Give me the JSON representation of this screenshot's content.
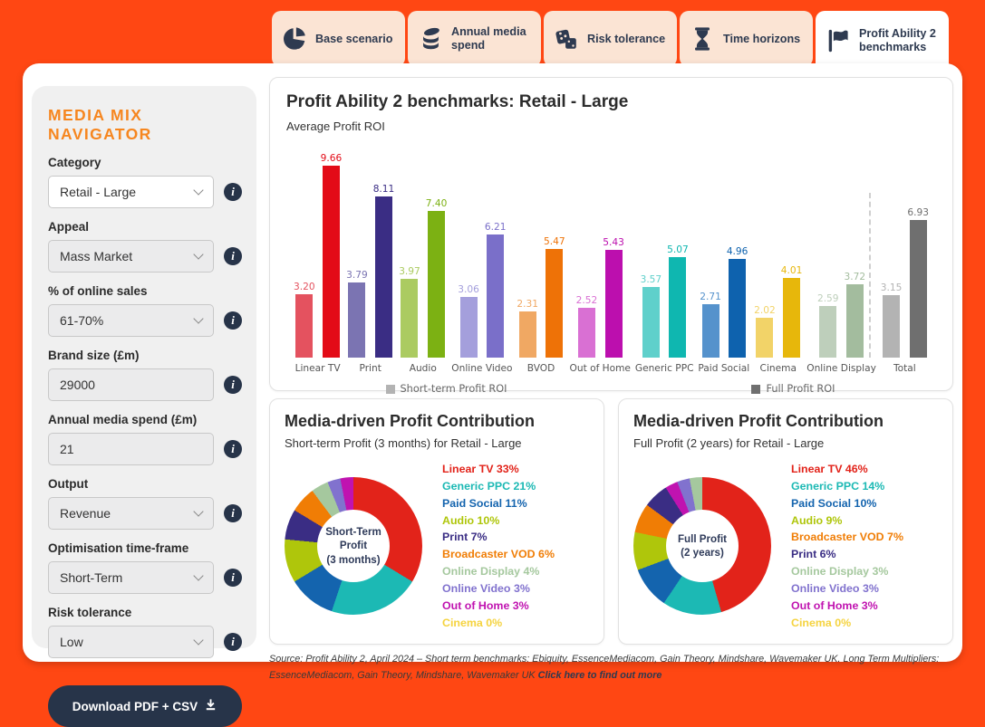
{
  "colors": {
    "frame": "#FF4713",
    "tab_bg": "#FBE4D4",
    "tab_fg": "#2E3A50",
    "accent_orange": "#F6861F",
    "navy": "#273449",
    "sidebar_bg": "#F0F0F0"
  },
  "tabs": [
    {
      "label": "Base scenario",
      "icon": "pie-chart-icon",
      "active": false
    },
    {
      "label": "Annual media spend",
      "icon": "coins-icon",
      "active": false
    },
    {
      "label": "Risk tolerance",
      "icon": "dice-icon",
      "active": false
    },
    {
      "label": "Time horizons",
      "icon": "hourglass-icon",
      "active": false
    },
    {
      "label": "Profit Ability 2 benchmarks",
      "icon": "flag-icon",
      "active": true
    }
  ],
  "sidebar": {
    "title": "MEDIA MIX NAVIGATOR",
    "fields": [
      {
        "name": "category",
        "label": "Category",
        "type": "select",
        "value": "Retail - Large",
        "highlighted": true
      },
      {
        "name": "appeal",
        "label": "Appeal",
        "type": "select",
        "value": "Mass Market",
        "highlighted": false
      },
      {
        "name": "online-sales-pct",
        "label": "% of online sales",
        "type": "select",
        "value": "61-70%",
        "highlighted": false
      },
      {
        "name": "brand-size",
        "label": "Brand size (£m)",
        "type": "input",
        "value": "29000",
        "highlighted": false
      },
      {
        "name": "annual-media-spend",
        "label": "Annual media spend (£m)",
        "type": "input",
        "value": "21",
        "highlighted": false
      },
      {
        "name": "output",
        "label": "Output",
        "type": "select",
        "value": "Revenue",
        "highlighted": false
      },
      {
        "name": "optimisation-time-frame",
        "label": "Optimisation time-frame",
        "type": "select",
        "value": "Short-Term",
        "highlighted": false
      },
      {
        "name": "risk-tolerance",
        "label": "Risk tolerance",
        "type": "select",
        "value": "Low",
        "highlighted": false
      }
    ],
    "download_label": "Download PDF + CSV"
  },
  "chart_data": [
    {
      "type": "bar",
      "title": "Profit Ability 2 benchmarks: Retail - Large",
      "subtitle": "Average Profit ROI",
      "categories": [
        "Linear TV",
        "Print",
        "Audio",
        "Online Video",
        "BVOD",
        "Out of Home",
        "Generic PPC",
        "Paid Social",
        "Cinema",
        "Online Display",
        "Total"
      ],
      "series": [
        {
          "name": "Short-term Profit ROI",
          "values": [
            3.2,
            3.79,
            3.97,
            3.06,
            2.31,
            2.52,
            3.57,
            2.71,
            2.02,
            2.59,
            3.15
          ],
          "value_labels": [
            "3.20",
            "3.79",
            "3.97",
            "3.06",
            "2.31",
            "2.52",
            "3.57",
            "2.71",
            "2.02",
            "2.59",
            "3.15"
          ],
          "colors": [
            "#E4525F",
            "#7B74B2",
            "#ABCB61",
            "#A49FDC",
            "#F0A863",
            "#D970D3",
            "#5FD0CB",
            "#5592CC",
            "#F2D368",
            "#BECFBB",
            "#B3B3B3"
          ],
          "legend_color": "#B3B3B3"
        },
        {
          "name": "Full Profit ROI",
          "values": [
            9.66,
            8.11,
            7.4,
            6.21,
            5.47,
            5.43,
            5.07,
            4.96,
            4.01,
            3.72,
            6.93
          ],
          "value_labels": [
            "9.66",
            "8.11",
            "7.40",
            "6.21",
            "5.47",
            "5.43",
            "5.07",
            "4.96",
            "4.01",
            "3.72",
            "6.93"
          ],
          "colors": [
            "#E30B17",
            "#3A2D84",
            "#7CB113",
            "#7A6FC9",
            "#EE7207",
            "#BC0FAE",
            "#0FB7B0",
            "#0E62AE",
            "#E7B70B",
            "#A3BC9E",
            "#6F6F6F"
          ],
          "legend_color": "#6F6F6F"
        }
      ],
      "ylim": [
        0,
        10.5
      ],
      "legend_position": "bottom",
      "separator_before_category": "Total"
    },
    {
      "type": "pie",
      "title": "Media-driven Profit Contribution",
      "subtitle": "Short-term Profit (3 months) for Retail - Large",
      "center_lines": [
        "Short-Term",
        "Profit",
        "(3 months)"
      ],
      "slices": [
        {
          "name": "Linear TV",
          "pct": 33,
          "color": "#E2231A"
        },
        {
          "name": "Generic PPC",
          "pct": 21,
          "color": "#1CB9B4"
        },
        {
          "name": "Paid Social",
          "pct": 11,
          "color": "#1464AE"
        },
        {
          "name": "Audio",
          "pct": 10,
          "color": "#AFC60B"
        },
        {
          "name": "Print",
          "pct": 7,
          "color": "#3A2D84"
        },
        {
          "name": "Broadcaster VOD",
          "pct": 6,
          "color": "#F07D05"
        },
        {
          "name": "Online Display",
          "pct": 4,
          "color": "#A5C89E"
        },
        {
          "name": "Online Video",
          "pct": 3,
          "color": "#8172CE"
        },
        {
          "name": "Out of Home",
          "pct": 3,
          "color": "#C013B0"
        },
        {
          "name": "Cinema",
          "pct": 0,
          "color": "#F5D33F"
        }
      ],
      "legend": [
        {
          "text": "Linear TV 33%",
          "color": "#E2231A"
        },
        {
          "text": "Generic PPC 21%",
          "color": "#1CB9B4"
        },
        {
          "text": "Paid Social 11%",
          "color": "#1464AE"
        },
        {
          "text": "Audio 10%",
          "color": "#AFC60B"
        },
        {
          "text": "Print 7%",
          "color": "#3A2D84"
        },
        {
          "text": "Broadcaster VOD 6%",
          "color": "#F07D05"
        },
        {
          "text": "Online Display 4%",
          "color": "#A5C89E"
        },
        {
          "text": "Online Video 3%",
          "color": "#8172CE"
        },
        {
          "text": "Out of Home 3%",
          "color": "#C013B0"
        },
        {
          "text": "Cinema 0%",
          "color": "#F5D33F"
        }
      ]
    },
    {
      "type": "pie",
      "title": "Media-driven Profit Contribution",
      "subtitle": "Full Profit (2 years) for Retail - Large",
      "center_lines": [
        "Full Profit",
        "(2 years)"
      ],
      "slices": [
        {
          "name": "Linear TV",
          "pct": 46,
          "color": "#E2231A"
        },
        {
          "name": "Generic PPC",
          "pct": 14,
          "color": "#1CB9B4"
        },
        {
          "name": "Paid Social",
          "pct": 10,
          "color": "#1464AE"
        },
        {
          "name": "Audio",
          "pct": 9,
          "color": "#AFC60B"
        },
        {
          "name": "Broadcaster VOD",
          "pct": 7,
          "color": "#F07D05"
        },
        {
          "name": "Print",
          "pct": 6,
          "color": "#3A2D84"
        },
        {
          "name": "Out of Home",
          "pct": 3,
          "color": "#C013B0"
        },
        {
          "name": "Online Video",
          "pct": 3,
          "color": "#8172CE"
        },
        {
          "name": "Online Display",
          "pct": 3,
          "color": "#A5C89E"
        },
        {
          "name": "Cinema",
          "pct": 0,
          "color": "#F5D33F"
        }
      ],
      "legend": [
        {
          "text": "Linear TV 46%",
          "color": "#E2231A"
        },
        {
          "text": "Generic PPC 14%",
          "color": "#1CB9B4"
        },
        {
          "text": "Paid Social 10%",
          "color": "#1464AE"
        },
        {
          "text": "Audio 9%",
          "color": "#AFC60B"
        },
        {
          "text": "Broadcaster VOD 7%",
          "color": "#F07D05"
        },
        {
          "text": "Print 6%",
          "color": "#3A2D84"
        },
        {
          "text": "Online Display 3%",
          "color": "#A5C89E"
        },
        {
          "text": "Online Video 3%",
          "color": "#8172CE"
        },
        {
          "text": "Out of Home 3%",
          "color": "#C013B0"
        },
        {
          "text": "Cinema 0%",
          "color": "#F5D33F"
        }
      ]
    }
  ],
  "source": {
    "text": "Source: Profit Ability 2, April 2024 – Short term benchmarks: Ebiquity, EssenceMediacom, Gain Theory, Mindshare, Wavemaker UK. Long Term Multipliers: EssenceMediacom, Gain Theory, Mindshare, Wavemaker UK ",
    "link_text": "Click here to find out more"
  }
}
